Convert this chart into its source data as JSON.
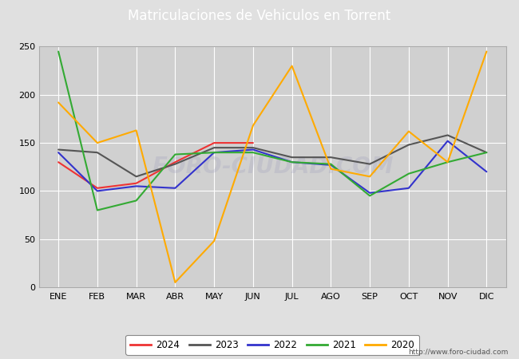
{
  "title": "Matriculaciones de Vehiculos en Torrent",
  "title_bg_color": "#5b9bd5",
  "title_text_color": "white",
  "months": [
    "ENE",
    "FEB",
    "MAR",
    "ABR",
    "MAY",
    "JUN",
    "JUL",
    "AGO",
    "SEP",
    "OCT",
    "NOV",
    "DIC"
  ],
  "series": {
    "2024": {
      "color": "#ee3333",
      "data": [
        130,
        103,
        108,
        130,
        150,
        150,
        null,
        null,
        null,
        null,
        null,
        null
      ]
    },
    "2023": {
      "color": "#555555",
      "data": [
        143,
        140,
        115,
        128,
        145,
        145,
        135,
        135,
        128,
        148,
        158,
        140
      ]
    },
    "2022": {
      "color": "#3333cc",
      "data": [
        140,
        100,
        105,
        103,
        140,
        143,
        130,
        127,
        98,
        103,
        152,
        120
      ]
    },
    "2021": {
      "color": "#33aa33",
      "data": [
        245,
        80,
        90,
        138,
        140,
        140,
        130,
        128,
        95,
        118,
        130,
        140
      ]
    },
    "2020": {
      "color": "#ffaa00",
      "data": [
        192,
        150,
        163,
        5,
        48,
        168,
        230,
        123,
        115,
        162,
        130,
        245
      ]
    }
  },
  "ylim": [
    0,
    250
  ],
  "yticks": [
    0,
    50,
    100,
    150,
    200,
    250
  ],
  "bg_color": "#e0e0e0",
  "plot_bg_color": "#d0d0d0",
  "grid_color": "#ffffff",
  "watermark": "FORO-CIUDAD.COM",
  "url": "http://www.foro-ciudad.com",
  "legend_order": [
    "2024",
    "2023",
    "2022",
    "2021",
    "2020"
  ]
}
